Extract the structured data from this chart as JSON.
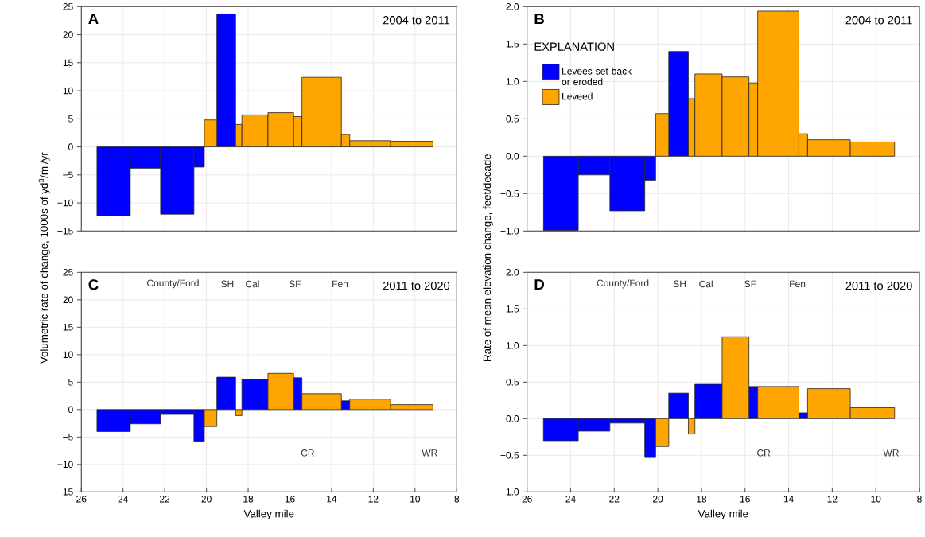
{
  "chart_data": [
    {
      "type": "histogram",
      "title": "A",
      "subtitle": "2004 to 2011",
      "ylabel": "Volumetric rate of change, 1000s of yd$^{3}$/mi/yr",
      "bins": [
        25.25,
        23.65,
        22.2,
        20.6,
        20.1,
        19.5,
        18.6,
        18.3,
        17.05,
        15.82,
        15.42,
        13.53,
        13.13,
        11.17,
        9.14
      ],
      "series": [
        {
          "color": "#0000ff",
          "values": [
            -12.3,
            -3.8,
            -12.0,
            -3.6,
            null,
            23.7,
            null,
            null,
            null,
            null,
            null,
            null,
            null,
            null
          ]
        },
        {
          "color": "#ffa500",
          "values": [
            null,
            null,
            null,
            null,
            4.8,
            null,
            4.0,
            5.7,
            6.1,
            5.4,
            12.4,
            2.2,
            1.1,
            1.0
          ]
        }
      ],
      "xlim": [
        26,
        8
      ],
      "xticks": [
        26,
        24,
        22,
        20,
        18,
        16,
        14,
        12,
        10,
        8
      ],
      "ylim": [
        -15,
        25
      ],
      "yticks": [
        {
          "value": -15,
          "label": "−15"
        },
        {
          "value": -10,
          "label": "−10"
        },
        {
          "value": -5,
          "label": "−5"
        },
        0,
        5,
        10,
        15,
        20,
        25
      ],
      "grid": true,
      "tick_labels": "y"
    },
    {
      "type": "histogram",
      "title": "B",
      "subtitle": "2004 to 2011",
      "ylabel": "Rate of mean elevation change, feet/decade",
      "bins": [
        25.25,
        23.65,
        22.2,
        20.6,
        20.1,
        19.5,
        18.6,
        18.3,
        17.05,
        15.82,
        15.42,
        13.53,
        13.13,
        11.17,
        9.14
      ],
      "series": [
        {
          "name": "Levees set back or eroded",
          "color": "#0000ff",
          "values": [
            -0.99,
            -0.25,
            -0.73,
            -0.32,
            null,
            1.4,
            null,
            null,
            null,
            null,
            null,
            null,
            null,
            null
          ]
        },
        {
          "name": "Leveed",
          "color": "#ffa500",
          "values": [
            null,
            null,
            null,
            null,
            0.57,
            null,
            0.77,
            1.1,
            1.06,
            0.98,
            1.94,
            0.3,
            0.22,
            0.19
          ]
        }
      ],
      "legend": "top left",
      "legend_title": "EXPLANATION",
      "xlim": [
        26,
        8
      ],
      "xticks": [
        26,
        24,
        22,
        20,
        18,
        16,
        14,
        12,
        10,
        8
      ],
      "ylim": [
        -1,
        2
      ],
      "yticks": [
        {
          "value": -1,
          "label": "−1.0"
        },
        {
          "value": -0.5,
          "label": "−0.5"
        },
        {
          "value": 0,
          "label": "0.0"
        },
        {
          "value": 0.5,
          "label": "0.5"
        },
        {
          "value": 1,
          "label": "1.0"
        },
        {
          "value": 1.5,
          "label": "1.5"
        },
        {
          "value": 2,
          "label": "2.0"
        }
      ],
      "grid": true,
      "tick_labels": "y"
    },
    {
      "type": "histogram",
      "title": "C",
      "subtitle": "2011 to 2020",
      "xlabel": "Valley mile",
      "bins": [
        25.25,
        23.65,
        22.2,
        20.6,
        20.1,
        19.5,
        18.6,
        18.3,
        17.05,
        15.82,
        15.42,
        13.53,
        13.13,
        11.17,
        9.14
      ],
      "series": [
        {
          "color": "#0000ff",
          "values": [
            -4.0,
            -2.6,
            -0.9,
            -5.8,
            null,
            5.9,
            null,
            5.5,
            null,
            5.8,
            null,
            1.6,
            null,
            null
          ]
        },
        {
          "color": "#ffa500",
          "values": [
            null,
            null,
            null,
            null,
            -3.1,
            null,
            -1.1,
            null,
            6.6,
            null,
            2.9,
            null,
            1.9,
            0.9
          ]
        }
      ],
      "annotations": [
        "County/Ford",
        "SH",
        "Cal",
        "SF",
        "Fen",
        "CR",
        "WR"
      ],
      "xlim": [
        26,
        8
      ],
      "xticks": [
        26,
        24,
        22,
        20,
        18,
        16,
        14,
        12,
        10,
        8
      ],
      "ylim": [
        -15,
        25
      ],
      "yticks": [
        {
          "value": -15,
          "label": "−15"
        },
        {
          "value": -10,
          "label": "−10"
        },
        {
          "value": -5,
          "label": "−5"
        },
        0,
        5,
        10,
        15,
        20,
        25
      ],
      "grid": true
    },
    {
      "type": "histogram",
      "title": "D",
      "subtitle": "2011 to 2020",
      "xlabel": "Valley mile",
      "bins": [
        25.25,
        23.65,
        22.2,
        20.6,
        20.1,
        19.5,
        18.6,
        18.3,
        17.05,
        15.82,
        15.42,
        13.53,
        13.13,
        11.17,
        9.14
      ],
      "series": [
        {
          "color": "#0000ff",
          "values": [
            -0.3,
            -0.17,
            -0.06,
            -0.53,
            null,
            0.35,
            null,
            0.47,
            null,
            0.44,
            null,
            0.08,
            null,
            null
          ]
        },
        {
          "color": "#ffa500",
          "values": [
            null,
            null,
            null,
            null,
            -0.38,
            null,
            -0.21,
            null,
            1.12,
            null,
            0.44,
            null,
            0.41,
            0.15
          ]
        }
      ],
      "annotations": [
        "County/Ford",
        "SH",
        "Cal",
        "SF",
        "Fen",
        "CR",
        "WR"
      ],
      "xlim": [
        26,
        8
      ],
      "xticks": [
        26,
        24,
        22,
        20,
        18,
        16,
        14,
        12,
        10,
        8
      ],
      "ylim": [
        -1,
        2
      ],
      "yticks": [
        {
          "value": -1,
          "label": "−1.0"
        },
        {
          "value": -0.5,
          "label": "−0.5"
        },
        {
          "value": 0,
          "label": "0.0"
        },
        {
          "value": 0.5,
          "label": "0.5"
        },
        {
          "value": 1,
          "label": "1.0"
        },
        {
          "value": 1.5,
          "label": "1.5"
        },
        {
          "value": 2,
          "label": "2.0"
        }
      ],
      "grid": true
    }
  ]
}
